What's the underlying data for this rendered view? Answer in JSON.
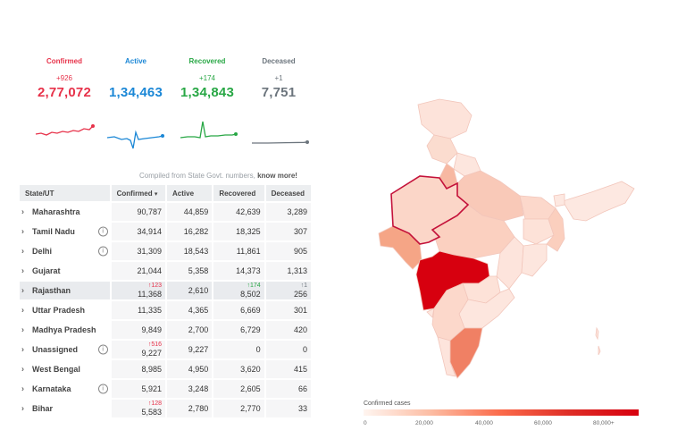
{
  "summary": {
    "confirmed": {
      "label": "Confirmed",
      "delta": "+926",
      "value": "2,77,072",
      "color": "#e7324a"
    },
    "active": {
      "label": "Active",
      "delta": "",
      "value": "1,34,463",
      "color": "#1b87d6"
    },
    "recovered": {
      "label": "Recovered",
      "delta": "+174",
      "value": "1,34,843",
      "color": "#28a745"
    },
    "deceased": {
      "label": "Deceased",
      "delta": "+1",
      "value": "7,751",
      "color": "#6c757d"
    }
  },
  "compiled": {
    "text": "Compiled from State Govt. numbers,",
    "link": "know more!"
  },
  "table": {
    "headers": {
      "state": "State/UT",
      "confirmed": "Confirmed",
      "sort_indicator": "▾",
      "active": "Active",
      "recovered": "Recovered",
      "deceased": "Deceased"
    },
    "rows": [
      {
        "name": "Maharashtra",
        "info": false,
        "confirmed": "90,787",
        "active": "44,859",
        "recovered": "42,639",
        "deceased": "3,289",
        "dc": "",
        "dr": "",
        "dd": ""
      },
      {
        "name": "Tamil Nadu",
        "info": true,
        "confirmed": "34,914",
        "active": "16,282",
        "recovered": "18,325",
        "deceased": "307",
        "dc": "",
        "dr": "",
        "dd": ""
      },
      {
        "name": "Delhi",
        "info": true,
        "confirmed": "31,309",
        "active": "18,543",
        "recovered": "11,861",
        "deceased": "905",
        "dc": "",
        "dr": "",
        "dd": ""
      },
      {
        "name": "Gujarat",
        "info": false,
        "confirmed": "21,044",
        "active": "5,358",
        "recovered": "14,373",
        "deceased": "1,313",
        "dc": "",
        "dr": "",
        "dd": ""
      },
      {
        "name": "Rajasthan",
        "info": false,
        "confirmed": "11,368",
        "active": "2,610",
        "recovered": "8,502",
        "deceased": "256",
        "dc": "↑123",
        "dr": "↑174",
        "dd": "↑1"
      },
      {
        "name": "Uttar Pradesh",
        "info": false,
        "confirmed": "11,335",
        "active": "4,365",
        "recovered": "6,669",
        "deceased": "301",
        "dc": "",
        "dr": "",
        "dd": ""
      },
      {
        "name": "Madhya Pradesh",
        "info": false,
        "confirmed": "9,849",
        "active": "2,700",
        "recovered": "6,729",
        "deceased": "420",
        "dc": "",
        "dr": "",
        "dd": ""
      },
      {
        "name": "Unassigned",
        "info": true,
        "confirmed": "9,227",
        "active": "9,227",
        "recovered": "0",
        "deceased": "0",
        "dc": "↑516",
        "dr": "",
        "dd": ""
      },
      {
        "name": "West Bengal",
        "info": false,
        "confirmed": "8,985",
        "active": "4,950",
        "recovered": "3,620",
        "deceased": "415",
        "dc": "",
        "dr": "",
        "dd": ""
      },
      {
        "name": "Karnataka",
        "info": true,
        "confirmed": "5,921",
        "active": "3,248",
        "recovered": "2,605",
        "deceased": "66",
        "dc": "",
        "dr": "",
        "dd": ""
      },
      {
        "name": "Bihar",
        "info": false,
        "confirmed": "5,583",
        "active": "2,780",
        "recovered": "2,770",
        "deceased": "33",
        "dc": "↑128",
        "dr": "",
        "dd": ""
      }
    ]
  },
  "map": {
    "legend_title": "Confirmed cases",
    "legend_ticks": [
      "0",
      "20,000",
      "40,000",
      "60,000",
      "80,000+"
    ],
    "highlighted_state": "Rajasthan"
  },
  "icons": {
    "chevron": "chevron-right-icon",
    "info": "info-icon"
  }
}
